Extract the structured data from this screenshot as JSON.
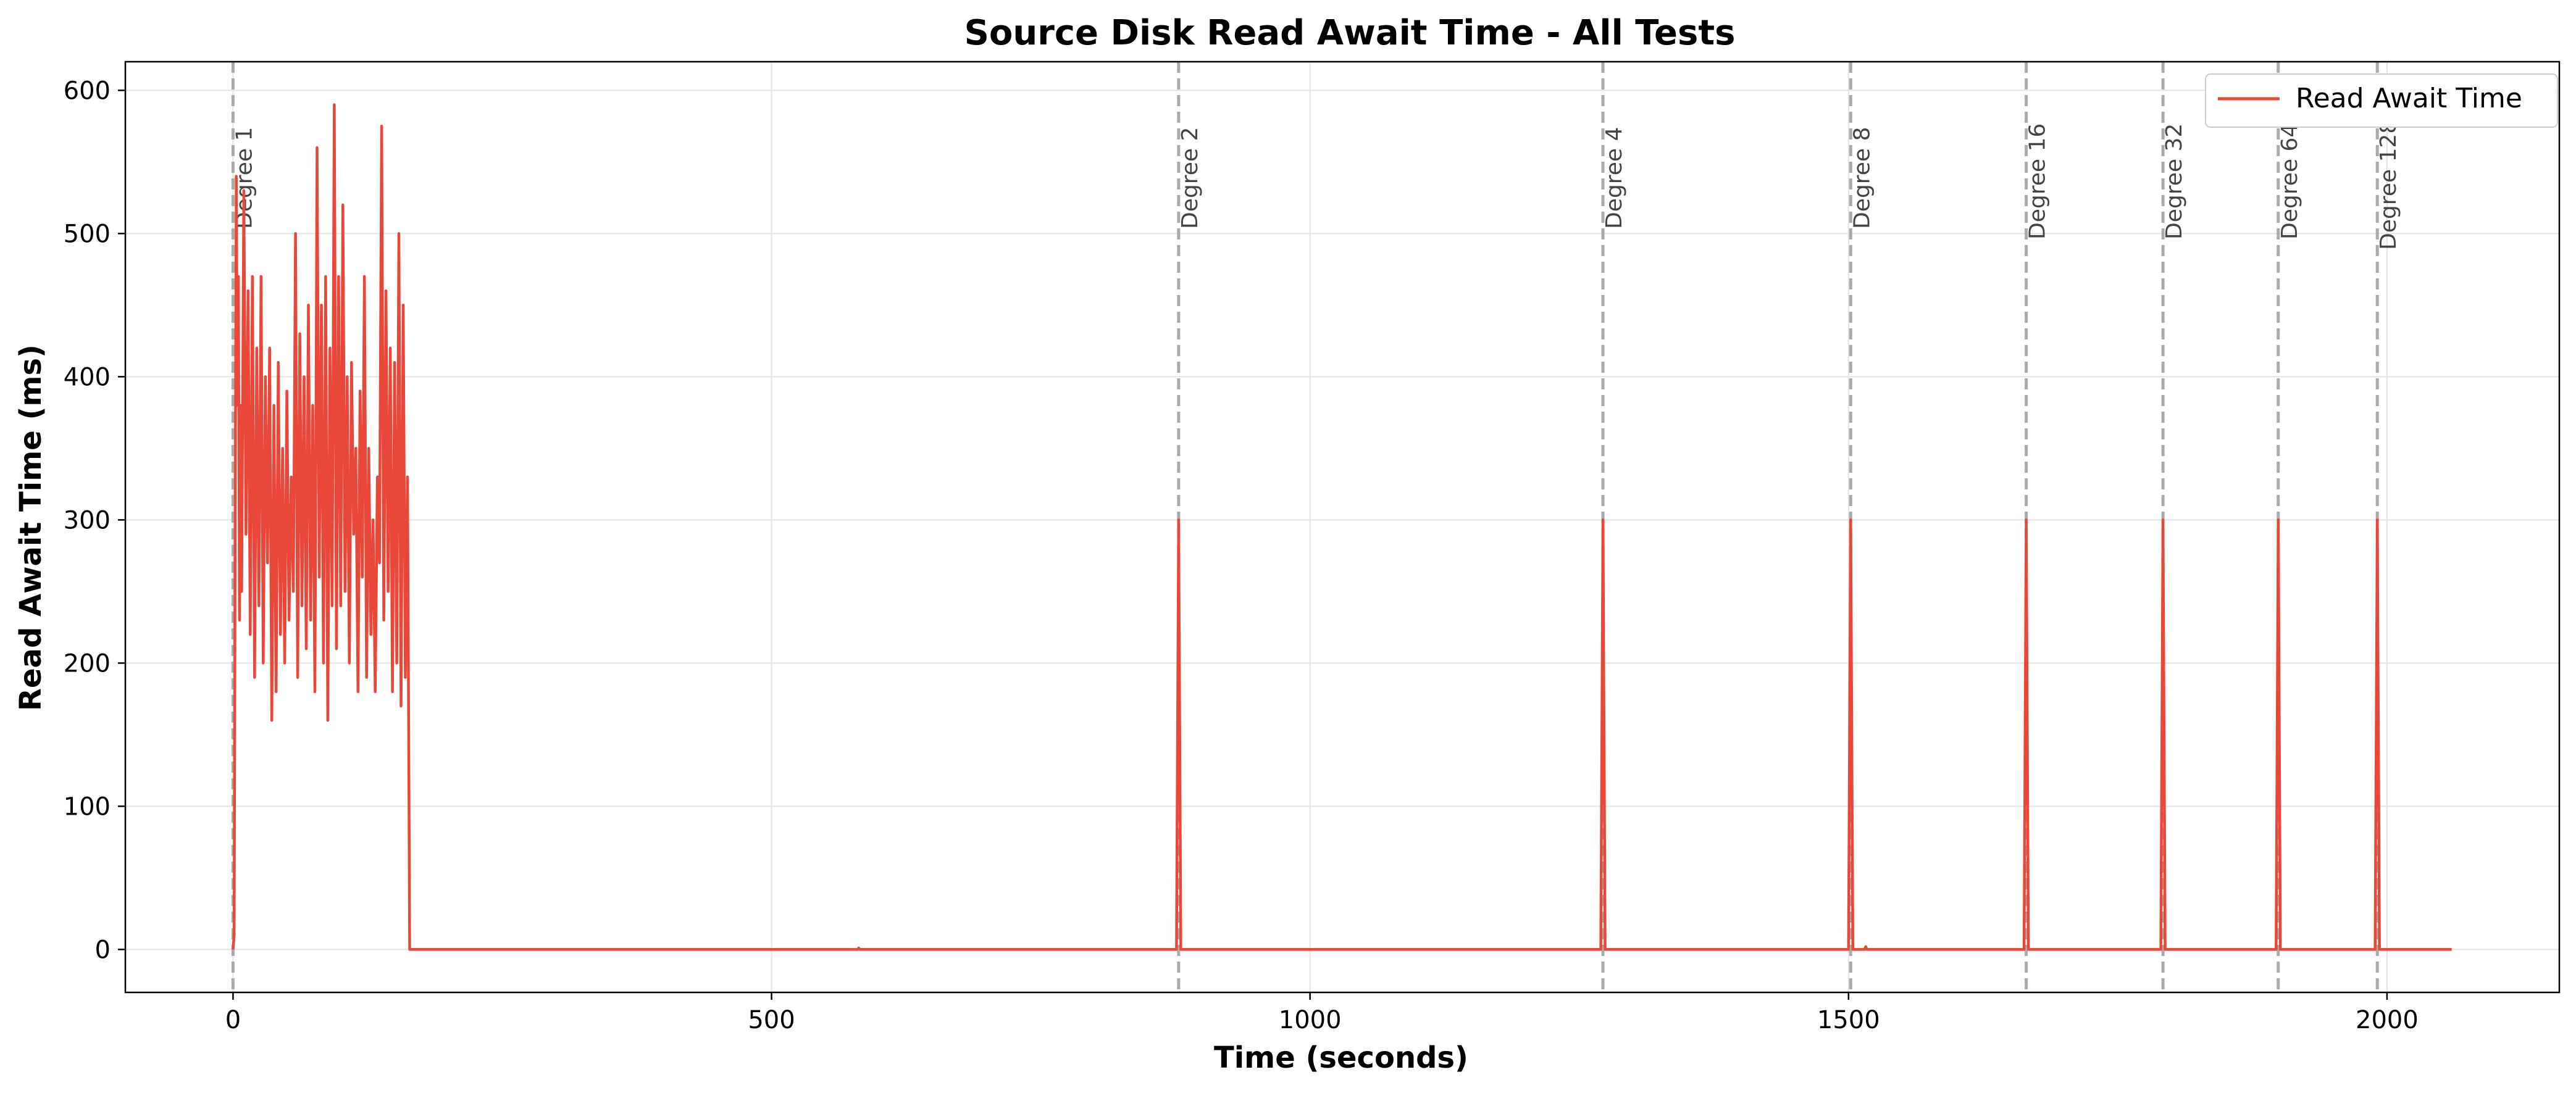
{
  "chart_data": {
    "type": "line",
    "title": "Source Disk Read Await Time - All Tests",
    "xlabel": "Time (seconds)",
    "ylabel": "Read Await Time (ms)",
    "xlim": [
      -100,
      2160
    ],
    "ylim": [
      -30,
      620
    ],
    "xticks": [
      0,
      500,
      1000,
      1500,
      2000
    ],
    "yticks": [
      0,
      100,
      200,
      300,
      400,
      500,
      600
    ],
    "grid": true,
    "legend_position": "top-right",
    "colors": {
      "series": "#e8473a",
      "marker_line": "#aaaaaa",
      "grid": "#e3e3e3"
    },
    "markers": [
      {
        "x": 0,
        "label": "Degree 1"
      },
      {
        "x": 878,
        "label": "Degree 2"
      },
      {
        "x": 1272,
        "label": "Degree 4"
      },
      {
        "x": 1502,
        "label": "Degree 8"
      },
      {
        "x": 1665,
        "label": "Degree 16"
      },
      {
        "x": 1792,
        "label": "Degree 32"
      },
      {
        "x": 1899,
        "label": "Degree 64"
      },
      {
        "x": 1991,
        "label": "Degree 128"
      }
    ],
    "series": [
      {
        "name": "Read Await Time",
        "points": [
          [
            0,
            0
          ],
          [
            1,
            10
          ],
          [
            2,
            300
          ],
          [
            3,
            540
          ],
          [
            4,
            380
          ],
          [
            5,
            470
          ],
          [
            6,
            230
          ],
          [
            7,
            380
          ],
          [
            8,
            250
          ],
          [
            10,
            530
          ],
          [
            12,
            290
          ],
          [
            14,
            460
          ],
          [
            16,
            220
          ],
          [
            18,
            470
          ],
          [
            20,
            190
          ],
          [
            22,
            420
          ],
          [
            24,
            240
          ],
          [
            26,
            470
          ],
          [
            28,
            200
          ],
          [
            30,
            400
          ],
          [
            32,
            270
          ],
          [
            34,
            420
          ],
          [
            36,
            160
          ],
          [
            38,
            380
          ],
          [
            40,
            180
          ],
          [
            42,
            410
          ],
          [
            44,
            220
          ],
          [
            46,
            350
          ],
          [
            48,
            200
          ],
          [
            50,
            390
          ],
          [
            52,
            230
          ],
          [
            54,
            330
          ],
          [
            56,
            250
          ],
          [
            58,
            500
          ],
          [
            60,
            190
          ],
          [
            62,
            430
          ],
          [
            64,
            240
          ],
          [
            66,
            400
          ],
          [
            68,
            210
          ],
          [
            70,
            450
          ],
          [
            72,
            230
          ],
          [
            74,
            380
          ],
          [
            76,
            180
          ],
          [
            78,
            560
          ],
          [
            80,
            260
          ],
          [
            82,
            450
          ],
          [
            84,
            200
          ],
          [
            86,
            470
          ],
          [
            88,
            160
          ],
          [
            90,
            420
          ],
          [
            92,
            240
          ],
          [
            94,
            590
          ],
          [
            96,
            210
          ],
          [
            98,
            470
          ],
          [
            100,
            240
          ],
          [
            102,
            520
          ],
          [
            104,
            250
          ],
          [
            106,
            400
          ],
          [
            108,
            200
          ],
          [
            110,
            410
          ],
          [
            112,
            290
          ],
          [
            114,
            350
          ],
          [
            116,
            180
          ],
          [
            118,
            390
          ],
          [
            120,
            260
          ],
          [
            122,
            470
          ],
          [
            124,
            190
          ],
          [
            126,
            350
          ],
          [
            128,
            220
          ],
          [
            130,
            300
          ],
          [
            132,
            180
          ],
          [
            134,
            330
          ],
          [
            136,
            270
          ],
          [
            138,
            575
          ],
          [
            140,
            230
          ],
          [
            142,
            460
          ],
          [
            144,
            250
          ],
          [
            146,
            420
          ],
          [
            148,
            180
          ],
          [
            150,
            410
          ],
          [
            152,
            200
          ],
          [
            154,
            500
          ],
          [
            156,
            170
          ],
          [
            158,
            450
          ],
          [
            160,
            190
          ],
          [
            162,
            330
          ],
          [
            164,
            0
          ],
          [
            580,
            0
          ],
          [
            581,
            1
          ],
          [
            582,
            0
          ],
          [
            876,
            0
          ],
          [
            878,
            300
          ],
          [
            880,
            0
          ],
          [
            1270,
            0
          ],
          [
            1272,
            300
          ],
          [
            1274,
            0
          ],
          [
            1500,
            0
          ],
          [
            1502,
            300
          ],
          [
            1504,
            0
          ],
          [
            1515,
            0
          ],
          [
            1516,
            2
          ],
          [
            1517,
            0
          ],
          [
            1663,
            0
          ],
          [
            1665,
            300
          ],
          [
            1667,
            0
          ],
          [
            1790,
            0
          ],
          [
            1792,
            300
          ],
          [
            1794,
            0
          ],
          [
            1897,
            0
          ],
          [
            1899,
            300
          ],
          [
            1901,
            0
          ],
          [
            1989,
            0
          ],
          [
            1991,
            300
          ],
          [
            1993,
            0
          ],
          [
            2060,
            0
          ]
        ]
      }
    ]
  }
}
